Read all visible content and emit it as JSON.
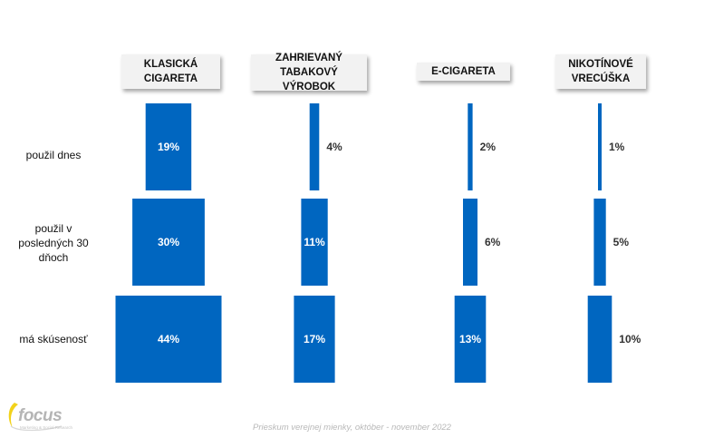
{
  "chart_data": {
    "type": "bar",
    "title": "",
    "categories": [
      "KLASICKÁ\nCIGARETA",
      "ZAHRIEVANÝ\nTABAKOVÝ VÝROBOK",
      "E-CIGARETA",
      "NIKOTÍNOVÉ\nVRECÚŠKA"
    ],
    "rows": [
      "použil dnes",
      "použil v\nposledných 30\ndňoch",
      "má skúsenosť"
    ],
    "series": [
      {
        "name": "použil dnes",
        "values": [
          19,
          4,
          2,
          1
        ],
        "labels": [
          "19%",
          "4%",
          "2%",
          "1%"
        ]
      },
      {
        "name": "použil v posledných 30 dňoch",
        "values": [
          30,
          11,
          6,
          5
        ],
        "labels": [
          "30%",
          "11%",
          "6%",
          "5%"
        ]
      },
      {
        "name": "má skúsenosť",
        "values": [
          44,
          17,
          13,
          10
        ],
        "labels": [
          "44%",
          "17%",
          "13%",
          "10%"
        ]
      }
    ],
    "unit": "%",
    "bar_color": "#0066c0"
  },
  "footer": "Prieskum verejnej mienky, október - november 2022",
  "logo": {
    "name": "focus",
    "tagline": "Marketing & Social Research"
  }
}
